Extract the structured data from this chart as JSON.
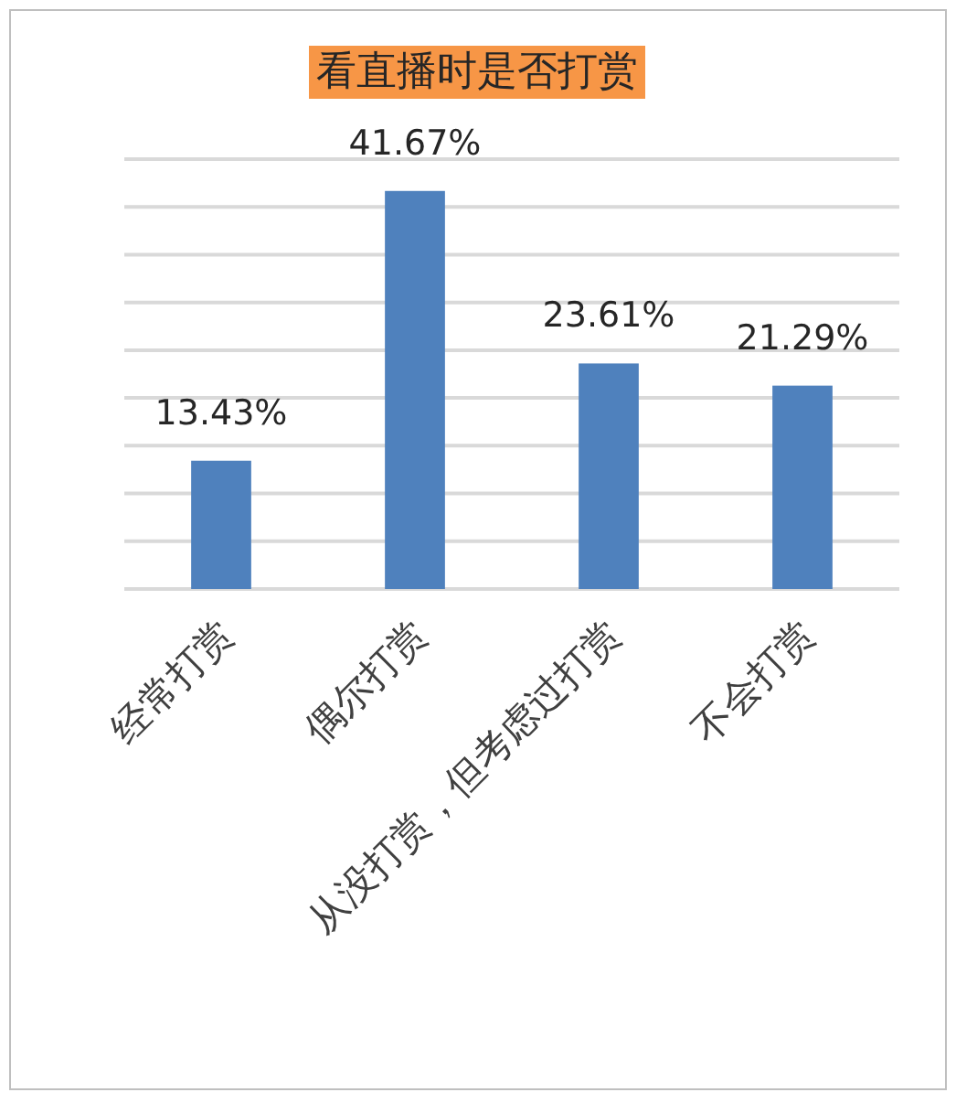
{
  "chart_data": {
    "type": "bar",
    "title": "看直播时是否打赏",
    "categories": [
      "经常打赏",
      "偶尔打赏",
      "从没打赏，但考虑过打赏",
      "不会打赏"
    ],
    "values": [
      13.43,
      41.67,
      23.61,
      21.29
    ],
    "color": "#4f81bd",
    "value_labels": [
      "13.43%",
      "41.67%",
      "23.61%",
      "21.29%"
    ],
    "ylim": [
      0,
      45
    ],
    "yticks": [
      {
        "value": 0,
        "label": null
      },
      {
        "value": 5,
        "label": null
      },
      {
        "value": 10,
        "label": null
      },
      {
        "value": 15,
        "label": null
      },
      {
        "value": 20,
        "label": null
      },
      {
        "value": 25,
        "label": null
      },
      {
        "value": 30,
        "label": null
      },
      {
        "value": 35,
        "label": null
      },
      {
        "value": 40,
        "label": null
      },
      {
        "value": 45,
        "label": null
      }
    ],
    "grid": "y"
  }
}
